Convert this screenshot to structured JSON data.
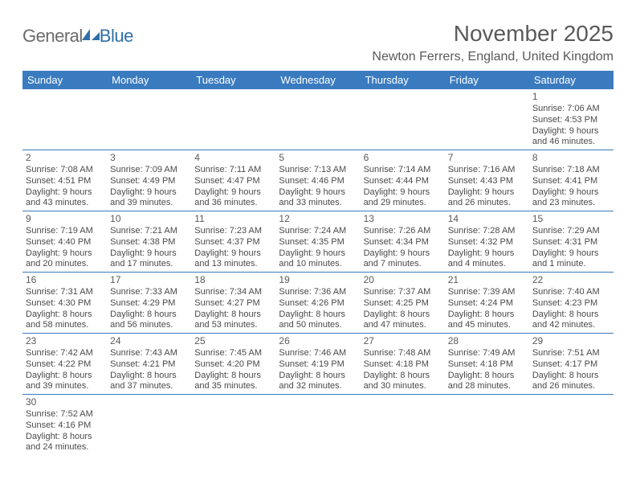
{
  "logo": {
    "general": "Genera",
    "l": "l",
    "blue": "Blue"
  },
  "title": "November 2025",
  "location": "Newton Ferrers, England, United Kingdom",
  "colors": {
    "header_bg": "#3a7bbf",
    "header_text": "#ffffff",
    "rule": "#3a7bbf",
    "body_text": "#4a4a4a",
    "title_text": "#5a5a5a",
    "logo_gray": "#6b6b6b",
    "logo_blue": "#2f6fa7"
  },
  "weekdays": [
    "Sunday",
    "Monday",
    "Tuesday",
    "Wednesday",
    "Thursday",
    "Friday",
    "Saturday"
  ],
  "weeks": [
    [
      null,
      null,
      null,
      null,
      null,
      null,
      {
        "n": "1",
        "sr": "Sunrise: 7:06 AM",
        "ss": "Sunset: 4:53 PM",
        "d1": "Daylight: 9 hours",
        "d2": "and 46 minutes."
      }
    ],
    [
      {
        "n": "2",
        "sr": "Sunrise: 7:08 AM",
        "ss": "Sunset: 4:51 PM",
        "d1": "Daylight: 9 hours",
        "d2": "and 43 minutes."
      },
      {
        "n": "3",
        "sr": "Sunrise: 7:09 AM",
        "ss": "Sunset: 4:49 PM",
        "d1": "Daylight: 9 hours",
        "d2": "and 39 minutes."
      },
      {
        "n": "4",
        "sr": "Sunrise: 7:11 AM",
        "ss": "Sunset: 4:47 PM",
        "d1": "Daylight: 9 hours",
        "d2": "and 36 minutes."
      },
      {
        "n": "5",
        "sr": "Sunrise: 7:13 AM",
        "ss": "Sunset: 4:46 PM",
        "d1": "Daylight: 9 hours",
        "d2": "and 33 minutes."
      },
      {
        "n": "6",
        "sr": "Sunrise: 7:14 AM",
        "ss": "Sunset: 4:44 PM",
        "d1": "Daylight: 9 hours",
        "d2": "and 29 minutes."
      },
      {
        "n": "7",
        "sr": "Sunrise: 7:16 AM",
        "ss": "Sunset: 4:43 PM",
        "d1": "Daylight: 9 hours",
        "d2": "and 26 minutes."
      },
      {
        "n": "8",
        "sr": "Sunrise: 7:18 AM",
        "ss": "Sunset: 4:41 PM",
        "d1": "Daylight: 9 hours",
        "d2": "and 23 minutes."
      }
    ],
    [
      {
        "n": "9",
        "sr": "Sunrise: 7:19 AM",
        "ss": "Sunset: 4:40 PM",
        "d1": "Daylight: 9 hours",
        "d2": "and 20 minutes."
      },
      {
        "n": "10",
        "sr": "Sunrise: 7:21 AM",
        "ss": "Sunset: 4:38 PM",
        "d1": "Daylight: 9 hours",
        "d2": "and 17 minutes."
      },
      {
        "n": "11",
        "sr": "Sunrise: 7:23 AM",
        "ss": "Sunset: 4:37 PM",
        "d1": "Daylight: 9 hours",
        "d2": "and 13 minutes."
      },
      {
        "n": "12",
        "sr": "Sunrise: 7:24 AM",
        "ss": "Sunset: 4:35 PM",
        "d1": "Daylight: 9 hours",
        "d2": "and 10 minutes."
      },
      {
        "n": "13",
        "sr": "Sunrise: 7:26 AM",
        "ss": "Sunset: 4:34 PM",
        "d1": "Daylight: 9 hours",
        "d2": "and 7 minutes."
      },
      {
        "n": "14",
        "sr": "Sunrise: 7:28 AM",
        "ss": "Sunset: 4:32 PM",
        "d1": "Daylight: 9 hours",
        "d2": "and 4 minutes."
      },
      {
        "n": "15",
        "sr": "Sunrise: 7:29 AM",
        "ss": "Sunset: 4:31 PM",
        "d1": "Daylight: 9 hours",
        "d2": "and 1 minute."
      }
    ],
    [
      {
        "n": "16",
        "sr": "Sunrise: 7:31 AM",
        "ss": "Sunset: 4:30 PM",
        "d1": "Daylight: 8 hours",
        "d2": "and 58 minutes."
      },
      {
        "n": "17",
        "sr": "Sunrise: 7:33 AM",
        "ss": "Sunset: 4:29 PM",
        "d1": "Daylight: 8 hours",
        "d2": "and 56 minutes."
      },
      {
        "n": "18",
        "sr": "Sunrise: 7:34 AM",
        "ss": "Sunset: 4:27 PM",
        "d1": "Daylight: 8 hours",
        "d2": "and 53 minutes."
      },
      {
        "n": "19",
        "sr": "Sunrise: 7:36 AM",
        "ss": "Sunset: 4:26 PM",
        "d1": "Daylight: 8 hours",
        "d2": "and 50 minutes."
      },
      {
        "n": "20",
        "sr": "Sunrise: 7:37 AM",
        "ss": "Sunset: 4:25 PM",
        "d1": "Daylight: 8 hours",
        "d2": "and 47 minutes."
      },
      {
        "n": "21",
        "sr": "Sunrise: 7:39 AM",
        "ss": "Sunset: 4:24 PM",
        "d1": "Daylight: 8 hours",
        "d2": "and 45 minutes."
      },
      {
        "n": "22",
        "sr": "Sunrise: 7:40 AM",
        "ss": "Sunset: 4:23 PM",
        "d1": "Daylight: 8 hours",
        "d2": "and 42 minutes."
      }
    ],
    [
      {
        "n": "23",
        "sr": "Sunrise: 7:42 AM",
        "ss": "Sunset: 4:22 PM",
        "d1": "Daylight: 8 hours",
        "d2": "and 39 minutes."
      },
      {
        "n": "24",
        "sr": "Sunrise: 7:43 AM",
        "ss": "Sunset: 4:21 PM",
        "d1": "Daylight: 8 hours",
        "d2": "and 37 minutes."
      },
      {
        "n": "25",
        "sr": "Sunrise: 7:45 AM",
        "ss": "Sunset: 4:20 PM",
        "d1": "Daylight: 8 hours",
        "d2": "and 35 minutes."
      },
      {
        "n": "26",
        "sr": "Sunrise: 7:46 AM",
        "ss": "Sunset: 4:19 PM",
        "d1": "Daylight: 8 hours",
        "d2": "and 32 minutes."
      },
      {
        "n": "27",
        "sr": "Sunrise: 7:48 AM",
        "ss": "Sunset: 4:18 PM",
        "d1": "Daylight: 8 hours",
        "d2": "and 30 minutes."
      },
      {
        "n": "28",
        "sr": "Sunrise: 7:49 AM",
        "ss": "Sunset: 4:18 PM",
        "d1": "Daylight: 8 hours",
        "d2": "and 28 minutes."
      },
      {
        "n": "29",
        "sr": "Sunrise: 7:51 AM",
        "ss": "Sunset: 4:17 PM",
        "d1": "Daylight: 8 hours",
        "d2": "and 26 minutes."
      }
    ],
    [
      {
        "n": "30",
        "sr": "Sunrise: 7:52 AM",
        "ss": "Sunset: 4:16 PM",
        "d1": "Daylight: 8 hours",
        "d2": "and 24 minutes."
      },
      null,
      null,
      null,
      null,
      null,
      null
    ]
  ]
}
